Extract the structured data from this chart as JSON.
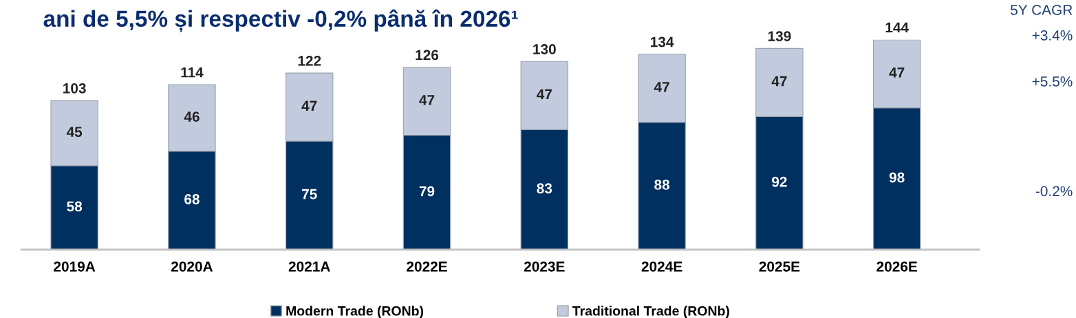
{
  "chart_data": {
    "type": "bar",
    "stacked": true,
    "title": "ani de 5,5% și respectiv -0,2% până în 2026¹",
    "categories": [
      "2019A",
      "2020A",
      "2021A",
      "2022E",
      "2023E",
      "2024E",
      "2025E",
      "2026E"
    ],
    "series": [
      {
        "name": "Modern Trade (RONb)",
        "color": "#00305f",
        "values": [
          58,
          68,
          75,
          79,
          83,
          88,
          92,
          98
        ]
      },
      {
        "name": "Traditional Trade (RONb)",
        "color": "#c2cbdd",
        "values": [
          45,
          46,
          47,
          47,
          47,
          47,
          47,
          47
        ]
      }
    ],
    "data_labels": true,
    "totals": [
      "103",
      "114",
      "122",
      "126",
      "130",
      "134",
      "139",
      "144"
    ],
    "annotations": [
      "5Y CAGR",
      "+3.4%",
      "+5.5%",
      "-0.2%"
    ],
    "legend": "bottom",
    "grid": false
  }
}
